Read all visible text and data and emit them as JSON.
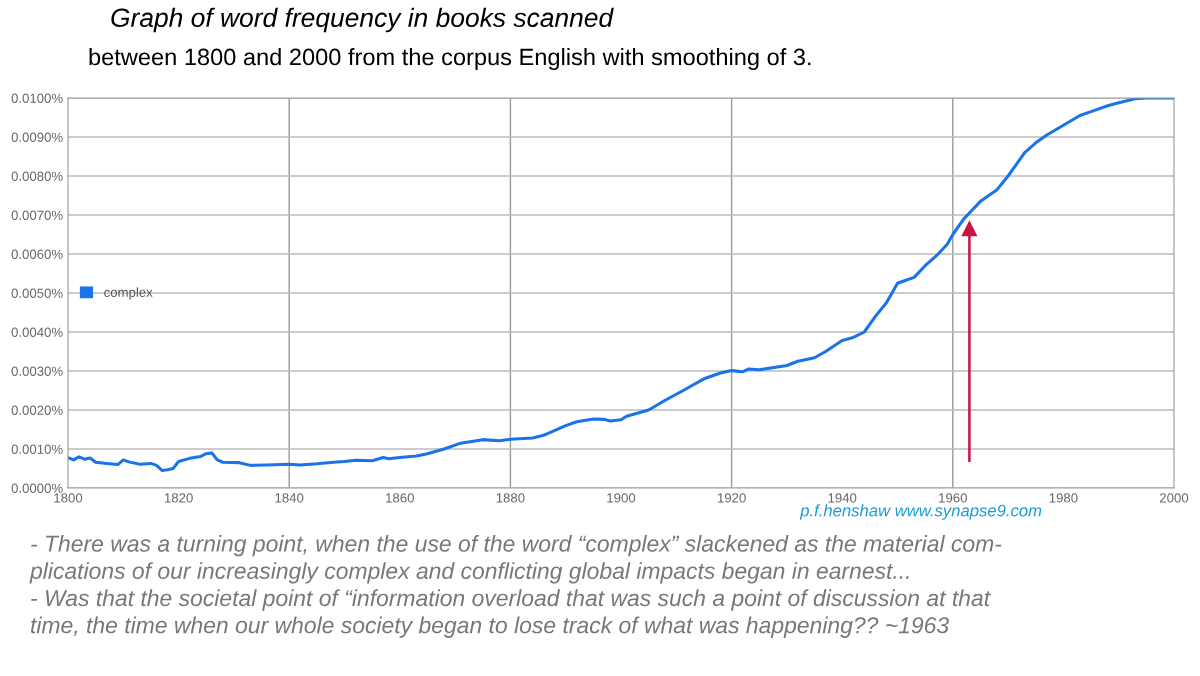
{
  "chart_data": {
    "type": "line",
    "title": "Graph of word frequency in books scanned",
    "subtitle": "between 1800 and 2000 from the corpus English with smoothing of 3.",
    "x": [
      1800,
      1801,
      1802,
      1803,
      1804,
      1805,
      1807,
      1809,
      1810,
      1811,
      1813,
      1815,
      1816,
      1817,
      1818,
      1819,
      1820,
      1822,
      1824,
      1825,
      1826,
      1827,
      1828,
      1831,
      1833,
      1836,
      1840,
      1842,
      1845,
      1848,
      1850,
      1852,
      1855,
      1857,
      1858,
      1860,
      1863,
      1865,
      1868,
      1871,
      1875,
      1878,
      1880,
      1884,
      1886,
      1890,
      1892,
      1895,
      1897,
      1898,
      1900,
      1901,
      1905,
      1908,
      1911,
      1915,
      1918,
      1920,
      1922,
      1923,
      1925,
      1930,
      1932,
      1935,
      1937,
      1940,
      1942,
      1944,
      1946,
      1948,
      1950,
      1951,
      1953,
      1955,
      1957,
      1959,
      1960,
      1962,
      1963,
      1965,
      1968,
      1970,
      1973,
      1975,
      1977,
      1980,
      1983,
      1985,
      1988,
      1990,
      1993,
      1995,
      2000
    ],
    "series": [
      {
        "name": "complex",
        "color": "#1a73e8",
        "values": [
          0.00078,
          0.00072,
          0.0008,
          0.00074,
          0.00077,
          0.00066,
          0.00063,
          0.0006,
          0.00072,
          0.00067,
          0.00061,
          0.00063,
          0.00058,
          0.00045,
          0.00047,
          0.0005,
          0.00068,
          0.00076,
          0.00081,
          0.00088,
          0.0009,
          0.00072,
          0.00066,
          0.00065,
          0.00058,
          0.00059,
          0.00061,
          0.00059,
          0.00062,
          0.00066,
          0.00068,
          0.00071,
          0.0007,
          0.00078,
          0.00075,
          0.00078,
          0.00082,
          0.00088,
          0.001,
          0.00115,
          0.00124,
          0.00121,
          0.00125,
          0.00128,
          0.00135,
          0.0016,
          0.0017,
          0.00177,
          0.00176,
          0.00172,
          0.00175,
          0.00184,
          0.002,
          0.00225,
          0.00248,
          0.0028,
          0.00295,
          0.00301,
          0.00298,
          0.00305,
          0.00303,
          0.00314,
          0.00325,
          0.00334,
          0.0035,
          0.00378,
          0.00386,
          0.004,
          0.0044,
          0.00475,
          0.00525,
          0.0053,
          0.0054,
          0.0057,
          0.00595,
          0.00625,
          0.0065,
          0.0069,
          0.00705,
          0.00735,
          0.00765,
          0.008,
          0.0086,
          0.00885,
          0.00905,
          0.0093,
          0.00955,
          0.00965,
          0.0098,
          0.00988,
          0.00998,
          0.01,
          0.01
        ]
      }
    ],
    "xlim": [
      1800,
      2000
    ],
    "xticks": [
      1800,
      1820,
      1840,
      1860,
      1880,
      1900,
      1920,
      1940,
      1960,
      1980,
      2000
    ],
    "ylim": [
      0,
      0.01
    ],
    "yticks": [
      {
        "value": 0,
        "label": "0.0000%"
      },
      {
        "value": 0.001,
        "label": "0.0010%"
      },
      {
        "value": 0.002,
        "label": "0.0020%"
      },
      {
        "value": 0.003,
        "label": "0.0030%"
      },
      {
        "value": 0.004,
        "label": "0.0040%"
      },
      {
        "value": 0.005,
        "label": "0.0050%"
      },
      {
        "value": 0.006,
        "label": "0.0060%"
      },
      {
        "value": 0.007,
        "label": "0.0070%"
      },
      {
        "value": 0.008,
        "label": "0.0080%"
      },
      {
        "value": 0.009,
        "label": "0.0090%"
      },
      {
        "value": 0.01,
        "label": "0.0100%"
      }
    ],
    "grid": true,
    "legend": "left",
    "marker": "none",
    "line_style": "solid",
    "ref_lines": [
      {
        "axis": "x",
        "value": 1963,
        "color": "#cc1144"
      }
    ],
    "annotations": [
      "p.f.henshaw www.synapse9.com",
      "- There was a turning point, when the use of the word “complex” slackened as the material com-\nplications of our increasingly complex and conflicting global impacts began in earnest...\n- Was that the societal point of “information overload that was such a point of discussion at that\ntime, the time when our whole society began to lose track of what was happening?? ~1963"
    ]
  }
}
